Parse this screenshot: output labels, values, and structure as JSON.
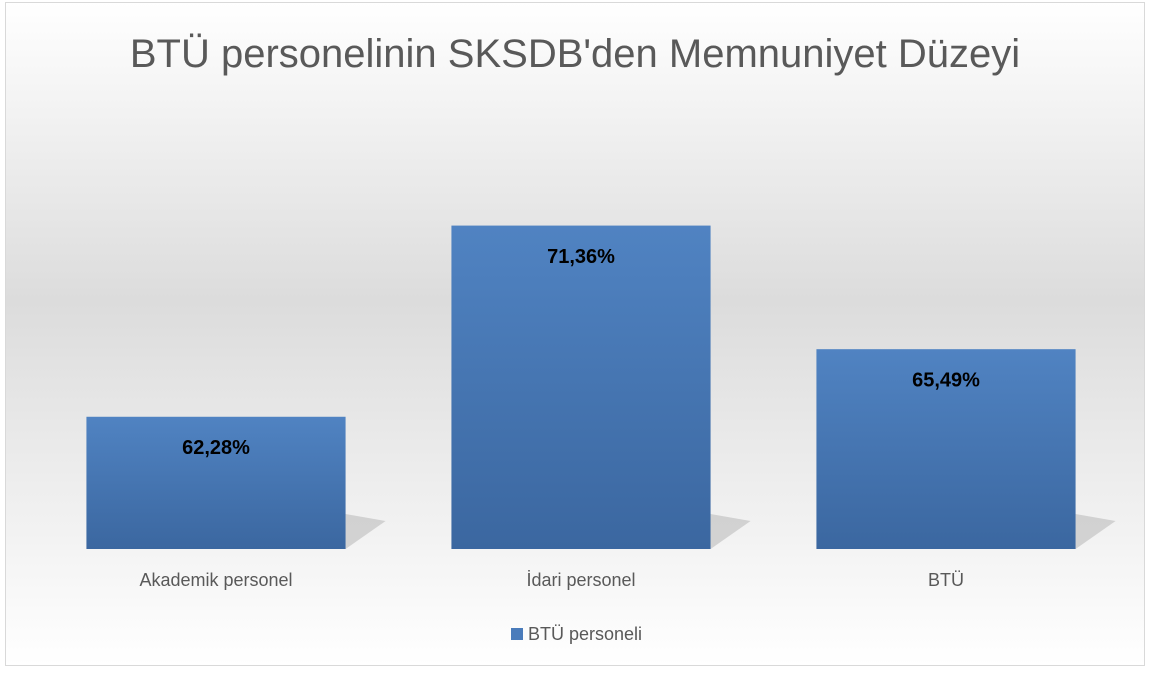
{
  "chart_data": {
    "type": "bar",
    "title": "BTÜ personelinin SKSDB'den Memnuniyet Düzeyi",
    "categories": [
      "Akademik personel",
      "İdari personel",
      "BTÜ"
    ],
    "series": [
      {
        "name": "BTÜ personeli",
        "color": "#4a7cbb",
        "values": [
          62.28,
          71.36,
          65.49
        ],
        "value_labels": [
          "62,28%",
          "71,36%",
          "65,49%"
        ]
      }
    ],
    "ylim": [
      56,
      74
    ],
    "legend": "bottom"
  }
}
